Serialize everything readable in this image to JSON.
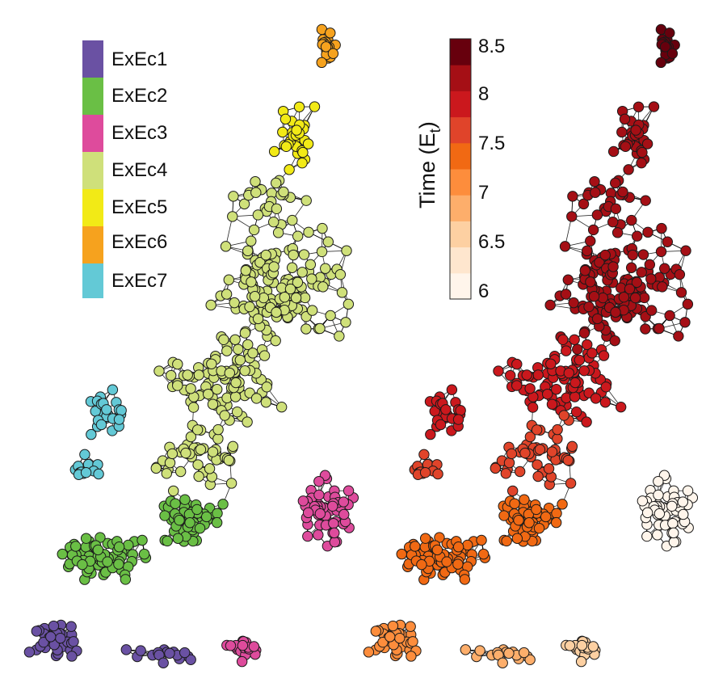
{
  "figure": {
    "cluster_legend": {
      "items": [
        {
          "label": "ExEc1",
          "color": "#6a51a3"
        },
        {
          "label": "ExEc2",
          "color": "#6abf45"
        },
        {
          "label": "ExEc3",
          "color": "#de4b9c"
        },
        {
          "label": "ExEc4",
          "color": "#cfe07a"
        },
        {
          "label": "ExEc5",
          "color": "#f2ea16"
        },
        {
          "label": "ExEc6",
          "color": "#f6a21e"
        },
        {
          "label": "ExEc7",
          "color": "#63c9d6"
        }
      ]
    },
    "time_colorbar": {
      "title": "Time (E",
      "title_subscript": "t",
      "title_close": ")",
      "ticks": [
        "8.5",
        "8",
        "7.5",
        "7",
        "6.5",
        "6"
      ],
      "colors": [
        "#fff5eb",
        "#fee6ce",
        "#fdd0a2",
        "#fdae6b",
        "#fd8d3c",
        "#f16913",
        "#e0442a",
        "#cb181d",
        "#a50f15",
        "#67000d"
      ]
    }
  }
}
